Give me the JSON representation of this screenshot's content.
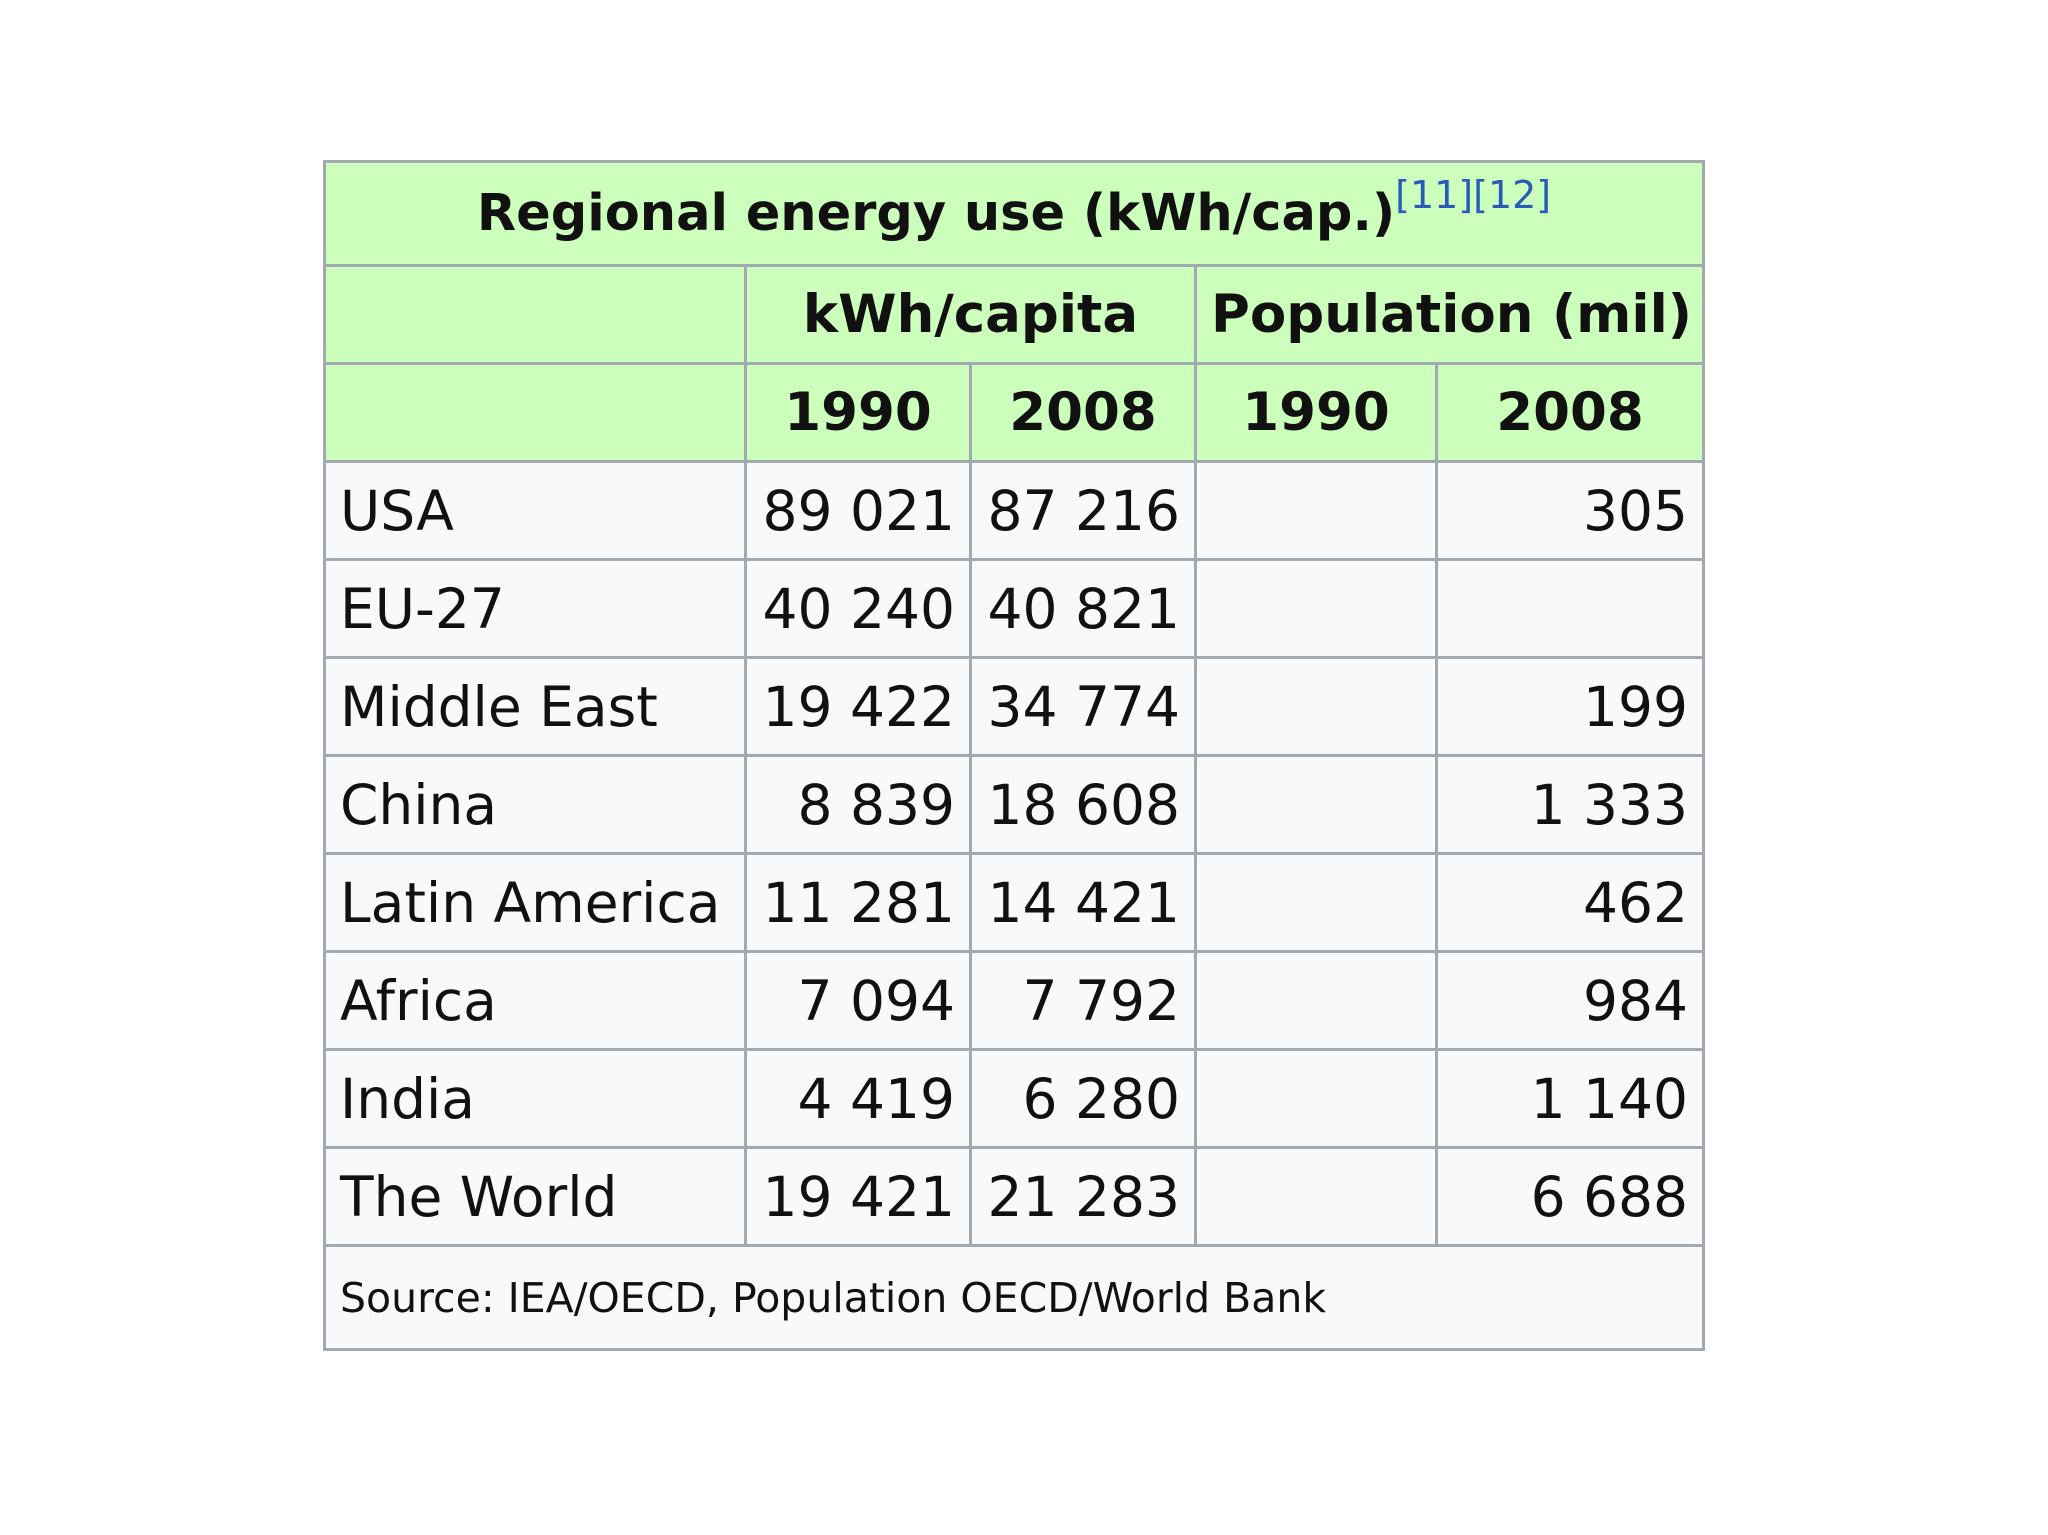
{
  "table": {
    "caption": "Regional energy use (kWh/cap.)",
    "caption_refs": "[11][12]",
    "group_headers": [
      "kWh/capita",
      "Population (mil)"
    ],
    "year_headers": [
      "1990",
      "2008",
      "1990",
      "2008"
    ],
    "rows": [
      {
        "region": "USA",
        "kwh_1990": "89 021",
        "kwh_2008": "87 216",
        "pop_1990": "",
        "pop_2008": "305"
      },
      {
        "region": "EU-27",
        "kwh_1990": "40 240",
        "kwh_2008": "40 821",
        "pop_1990": "",
        "pop_2008": ""
      },
      {
        "region": "Middle East",
        "kwh_1990": "19 422",
        "kwh_2008": "34 774",
        "pop_1990": "",
        "pop_2008": "199"
      },
      {
        "region": "China",
        "kwh_1990": "8 839",
        "kwh_2008": "18 608",
        "pop_1990": "",
        "pop_2008": "1 333"
      },
      {
        "region": "Latin America",
        "kwh_1990": "11 281",
        "kwh_2008": "14 421",
        "pop_1990": "",
        "pop_2008": "462"
      },
      {
        "region": "Africa",
        "kwh_1990": "7 094",
        "kwh_2008": "7 792",
        "pop_1990": "",
        "pop_2008": "984"
      },
      {
        "region": "India",
        "kwh_1990": "4 419",
        "kwh_2008": "6 280",
        "pop_1990": "",
        "pop_2008": "1 140"
      },
      {
        "region": "The World",
        "kwh_1990": "19 421",
        "kwh_2008": "21 283",
        "pop_1990": "",
        "pop_2008": "6 688"
      }
    ],
    "source": "Source: IEA/OECD, Population OECD/World Bank"
  },
  "colors": {
    "header_bg": "#ccffbb",
    "cell_bg": "#f8f9fa",
    "border": "#a2a9b1",
    "ref_link": "#2a5bb8"
  }
}
